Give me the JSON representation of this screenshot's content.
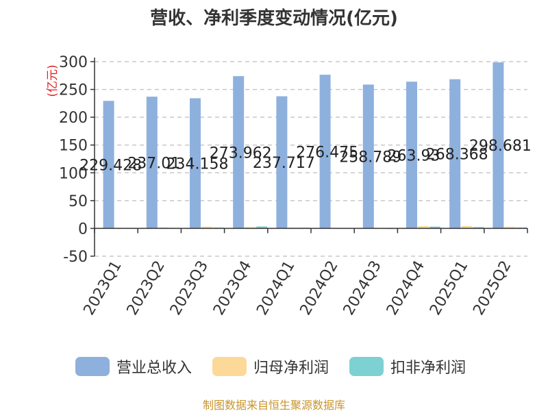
{
  "chart_data": {
    "type": "bar",
    "title": "营收、净利季度变动情况(亿元)",
    "ylabel": "(亿元)",
    "xlabel": "",
    "categories": [
      "2023Q1",
      "2023Q2",
      "2023Q3",
      "2023Q4",
      "2024Q1",
      "2024Q2",
      "2024Q3",
      "2024Q4",
      "2025Q1",
      "2025Q2"
    ],
    "yticks": [
      -50,
      0,
      50,
      100,
      150,
      200,
      250,
      300
    ],
    "ylim": [
      -50,
      300
    ],
    "grid": true,
    "legend_position": "bottom",
    "series": [
      {
        "name": "营业总收入",
        "color": "#8eb0dd",
        "values": [
          229.428,
          237.01,
          234.158,
          273.962,
          237.717,
          276.475,
          258.789,
          263.93,
          268.368,
          298.681
        ],
        "labels": [
          "229.428",
          "237.01",
          "234.158",
          "273.962",
          "237.717",
          "276.475",
          "258.789",
          "263.93",
          "268.368",
          "298.681"
        ]
      },
      {
        "name": "归母净利润",
        "color": "#fcd899",
        "values": [
          1.2,
          1.8,
          3.0,
          2.4,
          1.6,
          1.0,
          0.4,
          4.0,
          4.2,
          2.8
        ]
      },
      {
        "name": "扣非净利润",
        "color": "#7dd1d3",
        "values": [
          1.0,
          1.2,
          1.5,
          3.5,
          1.4,
          0.8,
          0.2,
          3.2,
          2.4,
          1.6
        ]
      }
    ]
  },
  "source": "制图数据来自恒生聚源数据库"
}
